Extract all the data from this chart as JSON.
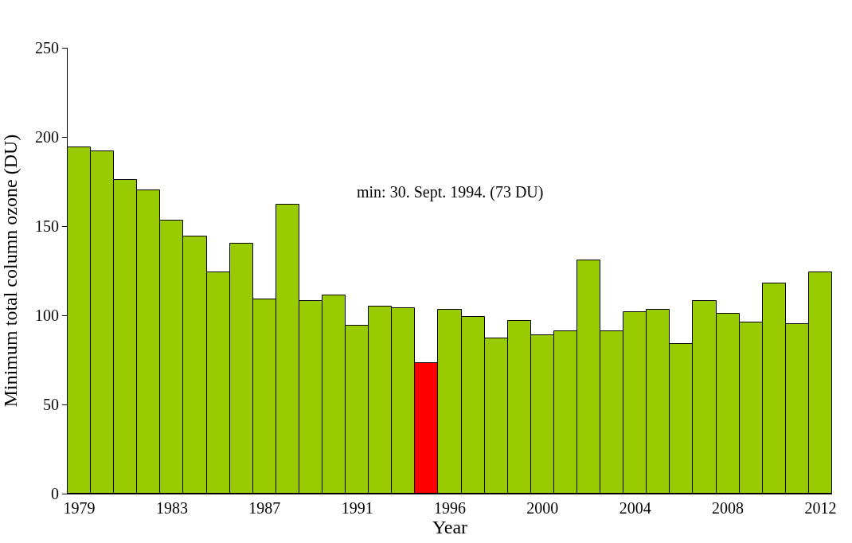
{
  "chart_data": {
    "type": "bar",
    "xlabel": "Year",
    "ylabel": "Minimum total column ozone (DU)",
    "categories": [
      "1979",
      null,
      null,
      null,
      "1983",
      null,
      null,
      null,
      "1987",
      null,
      null,
      null,
      "1991",
      null,
      null,
      null,
      "1996",
      null,
      null,
      null,
      "2000",
      null,
      null,
      null,
      "2004",
      null,
      null,
      null,
      "2008",
      null,
      null,
      null,
      "2012"
    ],
    "values": [
      194,
      192,
      176,
      170,
      153,
      144,
      124,
      140,
      109,
      162,
      108,
      111,
      94,
      105,
      104,
      73,
      103,
      99,
      87,
      97,
      89,
      91,
      131,
      91,
      102,
      103,
      84,
      108,
      101,
      96,
      118,
      95,
      124
    ],
    "colors": [
      "#99cc00",
      "#99cc00",
      "#99cc00",
      "#99cc00",
      "#99cc00",
      "#99cc00",
      "#99cc00",
      "#99cc00",
      "#99cc00",
      "#99cc00",
      "#99cc00",
      "#99cc00",
      "#99cc00",
      "#99cc00",
      "#99cc00",
      "#ff0000",
      "#99cc00",
      "#99cc00",
      "#99cc00",
      "#99cc00",
      "#99cc00",
      "#99cc00",
      "#99cc00",
      "#99cc00",
      "#99cc00",
      "#99cc00",
      "#99cc00",
      "#99cc00",
      "#99cc00",
      "#99cc00",
      "#99cc00",
      "#99cc00",
      "#99cc00"
    ],
    "ylim": [
      0,
      250
    ],
    "yticks": [
      0,
      50,
      100,
      150,
      200,
      250
    ],
    "annotations": [
      "min: 30. Sept. 1994. (73 DU)"
    ],
    "grid": false
  }
}
